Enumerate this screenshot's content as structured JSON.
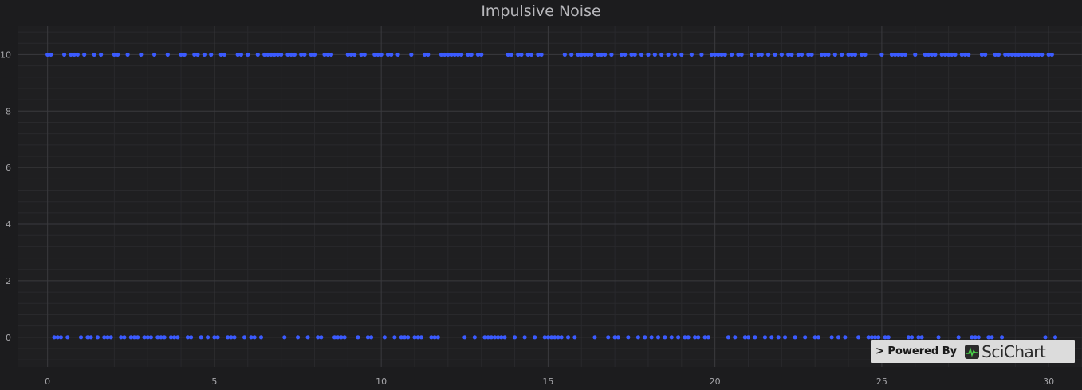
{
  "chart_data": {
    "type": "scatter",
    "title": "Impulsive Noise",
    "xlabel": "",
    "ylabel": "",
    "xlim": [
      -0.9,
      31
    ],
    "ylim": [
      -1.05,
      11
    ],
    "x_ticks": [
      0,
      5,
      10,
      15,
      20,
      25,
      30
    ],
    "y_ticks": [
      0,
      2,
      4,
      6,
      8,
      10
    ],
    "grid": true,
    "marker_color": "#3b5bff",
    "series": [
      {
        "high_x": [
          0.0,
          0.1,
          0.5,
          0.7,
          0.8,
          0.9,
          1.1,
          1.4,
          1.6,
          2.0,
          2.1,
          2.4,
          2.8,
          3.2,
          3.6,
          4.0,
          4.1,
          4.4,
          4.5,
          4.7,
          4.9,
          5.2,
          5.3,
          5.7,
          5.8,
          6.0,
          6.3,
          6.5,
          6.6,
          6.7,
          6.8,
          6.9,
          7.0,
          7.2,
          7.3,
          7.4,
          7.6,
          7.7,
          7.9,
          8.0,
          8.3,
          8.4,
          8.5,
          9.0,
          9.1,
          9.2,
          9.4,
          9.5,
          9.8,
          9.9,
          10.0,
          10.2,
          10.3,
          10.5,
          10.9,
          11.3,
          11.4,
          11.8,
          11.9,
          12.0,
          12.1,
          12.2,
          12.3,
          12.4,
          12.6,
          12.7,
          12.9,
          13.0,
          13.8,
          13.9,
          14.1,
          14.2,
          14.4,
          14.5,
          14.7,
          14.8,
          15.5,
          15.7,
          15.9,
          16.0,
          16.1,
          16.2,
          16.3,
          16.5,
          16.6,
          16.7,
          16.9,
          17.2,
          17.3,
          17.5,
          17.6,
          17.8,
          18.0,
          18.2,
          18.4,
          18.6,
          18.8,
          19.0,
          19.3,
          19.6,
          19.9,
          20.0,
          20.1,
          20.2,
          20.3,
          20.5,
          20.7,
          20.8,
          21.1,
          21.3,
          21.4,
          21.6,
          21.8,
          22.0,
          22.2,
          22.3,
          22.5,
          22.6,
          22.8,
          22.9,
          23.2,
          23.3,
          23.4,
          23.6,
          23.8,
          24.0,
          24.1,
          24.2,
          24.4,
          24.5,
          25.0,
          25.3,
          25.4,
          25.5,
          25.6,
          25.7,
          26.0,
          26.3,
          26.4,
          26.5,
          26.6,
          26.8,
          26.9,
          27.0,
          27.1,
          27.2,
          27.4,
          27.5,
          27.6,
          28.0,
          28.1,
          28.4,
          28.5,
          28.7,
          28.8,
          28.9,
          29.0,
          29.1,
          29.2,
          29.3,
          29.4,
          29.5,
          29.6,
          29.7,
          29.8,
          30.0,
          30.1
        ],
        "high_y": 10,
        "low_x": [
          0.2,
          0.3,
          0.4,
          0.6,
          1.0,
          1.2,
          1.3,
          1.5,
          1.7,
          1.8,
          1.9,
          2.2,
          2.3,
          2.5,
          2.6,
          2.7,
          2.9,
          3.0,
          3.1,
          3.3,
          3.4,
          3.5,
          3.7,
          3.8,
          3.9,
          4.2,
          4.3,
          4.6,
          4.8,
          5.0,
          5.1,
          5.4,
          5.5,
          5.6,
          5.9,
          6.1,
          6.2,
          6.4,
          7.1,
          7.5,
          7.8,
          8.1,
          8.2,
          8.6,
          8.7,
          8.8,
          8.9,
          9.3,
          9.6,
          9.7,
          10.1,
          10.4,
          10.6,
          10.7,
          10.8,
          11.0,
          11.1,
          11.2,
          11.5,
          11.6,
          11.7,
          12.5,
          12.8,
          13.1,
          13.2,
          13.3,
          13.4,
          13.5,
          13.6,
          13.7,
          14.0,
          14.3,
          14.6,
          14.9,
          15.0,
          15.1,
          15.2,
          15.3,
          15.4,
          15.6,
          15.8,
          16.4,
          16.8,
          17.0,
          17.1,
          17.4,
          17.7,
          17.9,
          18.1,
          18.3,
          18.5,
          18.7,
          18.9,
          19.1,
          19.2,
          19.4,
          19.5,
          19.7,
          19.8,
          20.4,
          20.6,
          20.9,
          21.0,
          21.2,
          21.5,
          21.7,
          21.9,
          22.1,
          22.4,
          22.7,
          23.0,
          23.1,
          23.5,
          23.7,
          23.9,
          24.3,
          24.6,
          24.7,
          24.8,
          24.9,
          25.1,
          25.2,
          25.8,
          25.9,
          26.1,
          26.2,
          26.7,
          27.3,
          27.7,
          27.8,
          27.9,
          28.2,
          28.3,
          28.6,
          29.9,
          30.2
        ],
        "low_y": 0
      }
    ]
  },
  "watermark": {
    "prefix": "> Powered By",
    "brand": "SciChart",
    "icon": "scichart-logo-icon"
  }
}
